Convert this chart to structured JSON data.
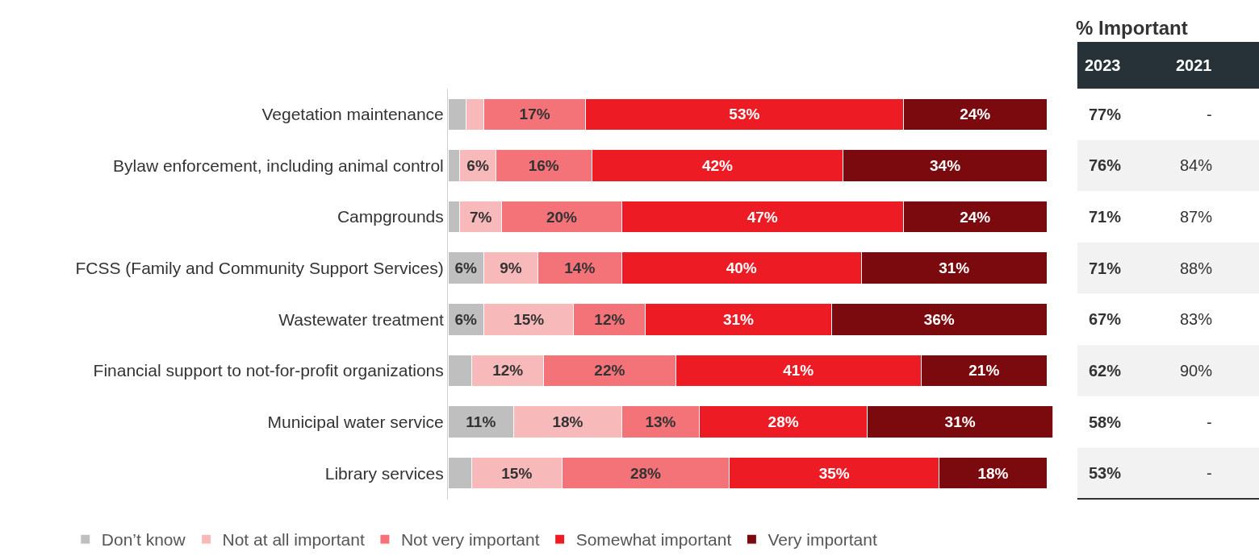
{
  "chart_data": [
    {
      "type": "bar",
      "orientation": "horizontal",
      "stacked": true,
      "legend": "bottom",
      "tick_labels": "y",
      "xlim": [
        0,
        101
      ],
      "categories": [
        "Vegetation maintenance",
        "Bylaw enforcement, including animal control",
        "Campgrounds",
        "FCSS (Family and Community Support Services)",
        "Wastewater treatment",
        "Financial support to not-for-profit organizations",
        "Municipal water service",
        "Library services"
      ],
      "series": [
        {
          "name": "Don’t know",
          "color": "#bfbfbf",
          "values": [
            3,
            2,
            2,
            6,
            6,
            4,
            11,
            4
          ],
          "value_labels": [
            null,
            null,
            null,
            "6%",
            "6%",
            null,
            "11%",
            null
          ]
        },
        {
          "name": "Not at all important",
          "color": "#f8b9bb",
          "values": [
            3,
            6,
            7,
            9,
            15,
            12,
            18,
            15
          ],
          "value_labels": [
            null,
            "6%",
            "7%",
            "9%",
            "15%",
            "12%",
            "18%",
            "15%"
          ]
        },
        {
          "name": "Not very important",
          "color": "#f47378",
          "values": [
            17,
            16,
            20,
            14,
            12,
            22,
            13,
            28
          ],
          "value_labels": [
            "17%",
            "16%",
            "20%",
            "14%",
            "12%",
            "22%",
            "13%",
            "28%"
          ]
        },
        {
          "name": "Somewhat important",
          "color": "#ed1c24",
          "values": [
            53,
            42,
            47,
            40,
            31,
            41,
            28,
            35
          ],
          "value_labels": [
            "53%",
            "42%",
            "47%",
            "40%",
            "31%",
            "41%",
            "28%",
            "35%"
          ]
        },
        {
          "name": "Very important",
          "color": "#7b0a0e",
          "values": [
            24,
            34,
            24,
            31,
            36,
            21,
            31,
            18
          ],
          "value_labels": [
            "24%",
            "34%",
            "24%",
            "31%",
            "36%",
            "21%",
            "31%",
            "18%"
          ]
        }
      ]
    },
    {
      "type": "other",
      "title": "% Important",
      "categories": [
        "2023",
        "2021"
      ],
      "cell_labels": [
        [
          "77%",
          "-"
        ],
        [
          "76%",
          "84%"
        ],
        [
          "71%",
          "87%"
        ],
        [
          "71%",
          "88%"
        ],
        [
          "67%",
          "83%"
        ],
        [
          "62%",
          "90%"
        ],
        [
          "58%",
          "-"
        ],
        [
          "53%",
          "-"
        ]
      ]
    }
  ]
}
